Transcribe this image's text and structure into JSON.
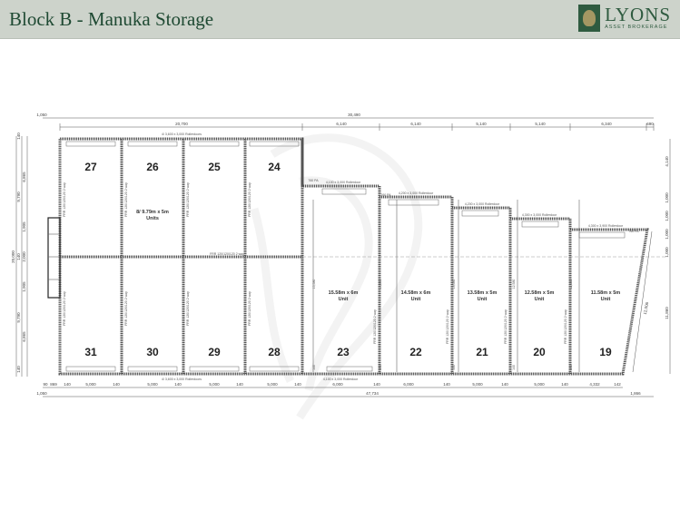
{
  "header": {
    "title": "Block B - Manuka Storage",
    "brand": "LYONS",
    "brand_sub": "ASSET BROKERAGE"
  },
  "colors": {
    "header_bg": "#cdd3cb",
    "brand_green": "#2f5b40"
  },
  "plan": {
    "top_dims": {
      "overall": "30,490",
      "left_offset": "1,050",
      "left_block": "20,700",
      "segments": [
        "6,140",
        "6,140",
        "5,140",
        "5,140",
        "6,340",
        "690"
      ]
    },
    "bottom_dims": {
      "segments": [
        "90",
        "869",
        "140",
        "5,000",
        "140",
        "5,000",
        "140",
        "5,000",
        "140",
        "5,000",
        "140",
        "6,000",
        "140",
        "6,000",
        "140",
        "5,000",
        "140",
        "5,000",
        "140",
        "4,332",
        "142"
      ],
      "left_offset": "1,050",
      "overall": "47,734",
      "right_offset": "1,866"
    },
    "left_dims": {
      "overall": "20,000",
      "outer": [
        "140",
        "9,790",
        "140",
        "9,790",
        "140"
      ],
      "inner": [
        "6,865",
        "1,905",
        "2,000",
        "1,905",
        "6,865"
      ]
    },
    "right_dims": [
      "4,140",
      "1,000",
      "1,000",
      "1,000",
      "1,000",
      "11,860"
    ],
    "rollerdoors_top": "4/ 3,600 x 3,000 Rollerdoors",
    "rollerdoors_bottom": "4/ 3,600 x 3,000 Rollerdoors",
    "rollerdoor_bottom_23": "4,100 x 3,000 Rollerdoor",
    "firewall": "FRR 120/120/120 2 way",
    "pa_door": "760 PA",
    "small_units": {
      "label": "8/ 9.79m x 5m",
      "sub": "Units",
      "top_row": [
        "27",
        "26",
        "25",
        "24"
      ],
      "bottom_row": [
        "31",
        "30",
        "29",
        "28"
      ]
    },
    "large_units": [
      {
        "number": "23",
        "size": "15.58m x 6m",
        "sub": "Unit",
        "depth": "15,580",
        "door": "4,100 x 3,000 Rollerdoor"
      },
      {
        "number": "22",
        "size": "14.58m x 6m",
        "sub": "Unit",
        "depth": "14,580",
        "door": "4,200 x 3,000 Rollerdoor"
      },
      {
        "number": "21",
        "size": "13.58m x 5m",
        "sub": "Unit",
        "depth": "13,580",
        "door": "4,200 x 3,000 Rollerdoor"
      },
      {
        "number": "20",
        "size": "12.58m x 5m",
        "sub": "Unit",
        "depth": "12,580",
        "door": "4,300 x 3,000 Rollerdoor"
      },
      {
        "number": "19",
        "size": "11.58m x 5m",
        "sub": "Unit",
        "depth": "11,580",
        "door": "4,300 x 3,900 Rollerdoor"
      }
    ],
    "slant_dim": "12,006",
    "wall_gap": "140"
  }
}
